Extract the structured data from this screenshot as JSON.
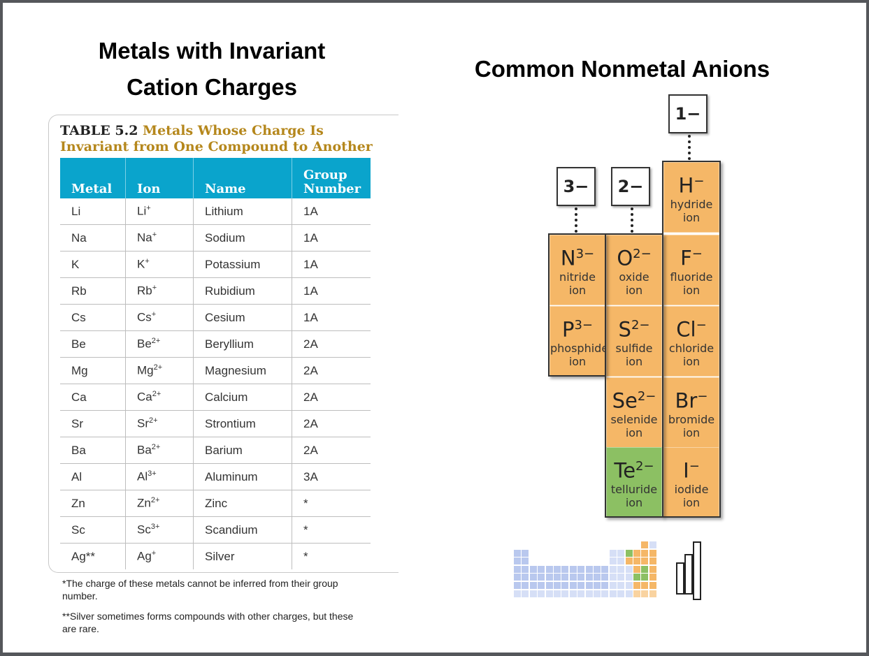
{
  "left_heading": {
    "line1": "Metals with Invariant",
    "line2": "Cation Charges"
  },
  "right_heading": "Common Nonmetal Anions",
  "table": {
    "caption_number": "TABLE 5.2",
    "caption_text_1": "Metals Whose Charge Is",
    "caption_text_2": "Invariant from One Compound to Another",
    "headers": [
      "Metal",
      "Ion",
      "Name",
      "Group",
      "Number"
    ],
    "rows": [
      {
        "metal": "Li",
        "ion_base": "Li",
        "ion_charge": "+",
        "name": "Lithium",
        "group": "1A"
      },
      {
        "metal": "Na",
        "ion_base": "Na",
        "ion_charge": "+",
        "name": "Sodium",
        "group": "1A"
      },
      {
        "metal": "K",
        "ion_base": "K",
        "ion_charge": "+",
        "name": "Potassium",
        "group": "1A"
      },
      {
        "metal": "Rb",
        "ion_base": "Rb",
        "ion_charge": "+",
        "name": "Rubidium",
        "group": "1A"
      },
      {
        "metal": "Cs",
        "ion_base": "Cs",
        "ion_charge": "+",
        "name": "Cesium",
        "group": "1A"
      },
      {
        "metal": "Be",
        "ion_base": "Be",
        "ion_charge": "2+",
        "name": "Beryllium",
        "group": "2A"
      },
      {
        "metal": "Mg",
        "ion_base": "Mg",
        "ion_charge": "2+",
        "name": "Magnesium",
        "group": "2A"
      },
      {
        "metal": "Ca",
        "ion_base": "Ca",
        "ion_charge": "2+",
        "name": "Calcium",
        "group": "2A"
      },
      {
        "metal": "Sr",
        "ion_base": "Sr",
        "ion_charge": "2+",
        "name": "Strontium",
        "group": "2A"
      },
      {
        "metal": "Ba",
        "ion_base": "Ba",
        "ion_charge": "2+",
        "name": "Barium",
        "group": "2A"
      },
      {
        "metal": "Al",
        "ion_base": "Al",
        "ion_charge": "3+",
        "name": "Aluminum",
        "group": "3A"
      },
      {
        "metal": "Zn",
        "ion_base": "Zn",
        "ion_charge": "2+",
        "name": "Zinc",
        "group": "*"
      },
      {
        "metal": "Sc",
        "ion_base": "Sc",
        "ion_charge": "3+",
        "name": "Scandium",
        "group": "*"
      },
      {
        "metal": "Ag**",
        "ion_base": "Ag",
        "ion_charge": "+",
        "name": "Silver",
        "group": "*"
      }
    ],
    "footnote1": "*The charge of these metals cannot be inferred from their group number.",
    "footnote2": "**Silver sometimes forms compounds with other charges, but these are rare."
  },
  "anions": {
    "charges": [
      "3−",
      "2−",
      "1−"
    ],
    "cells": [
      {
        "base": "H",
        "charge": "−",
        "name1": "hydride",
        "name2": "ion",
        "color": "#f5b767"
      },
      {
        "base": "N",
        "charge": "3−",
        "name1": "nitride",
        "name2": "ion",
        "color": "#f5b767"
      },
      {
        "base": "O",
        "charge": "2−",
        "name1": "oxide",
        "name2": "ion",
        "color": "#f5b767"
      },
      {
        "base": "F",
        "charge": "−",
        "name1": "fluoride",
        "name2": "ion",
        "color": "#f5b767"
      },
      {
        "base": "P",
        "charge": "3−",
        "name1": "phosphide",
        "name2": "ion",
        "color": "#f5b767"
      },
      {
        "base": "S",
        "charge": "2−",
        "name1": "sulfide",
        "name2": "ion",
        "color": "#f5b767"
      },
      {
        "base": "Cl",
        "charge": "−",
        "name1": "chloride",
        "name2": "ion",
        "color": "#f5b767"
      },
      {
        "base": "Se",
        "charge": "2−",
        "name1": "selenide",
        "name2": "ion",
        "color": "#f5b767"
      },
      {
        "base": "Br",
        "charge": "−",
        "name1": "bromide",
        "name2": "ion",
        "color": "#f5b767"
      },
      {
        "base": "Te",
        "charge": "2−",
        "name1": "telluride",
        "name2": "ion",
        "color": "#8cc063"
      },
      {
        "base": "I",
        "charge": "−",
        "name1": "iodide",
        "name2": "ion",
        "color": "#f5b767"
      }
    ]
  }
}
